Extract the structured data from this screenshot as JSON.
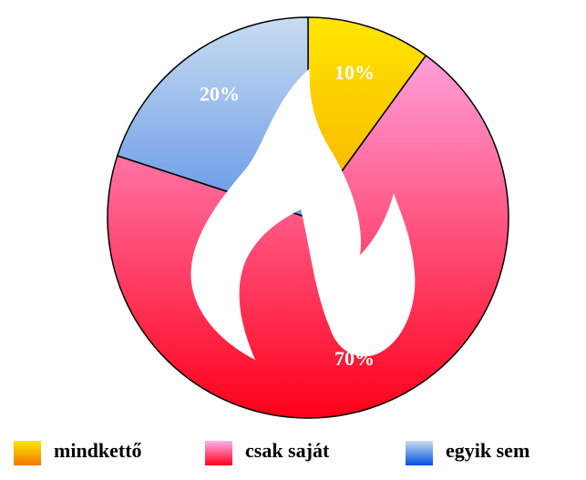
{
  "chart_data": {
    "type": "pie",
    "categories": [
      "mindkettő",
      "csak saját",
      "egyik sem"
    ],
    "values": [
      10,
      70,
      20
    ],
    "value_labels": [
      "10%",
      "70%",
      "20%"
    ],
    "colors": [
      [
        "#ffe600",
        "#f07800"
      ],
      [
        "#ffb0f0",
        "#ff0018"
      ],
      [
        "#c8dcf0",
        "#0050e0"
      ]
    ],
    "legend": "bottom"
  }
}
